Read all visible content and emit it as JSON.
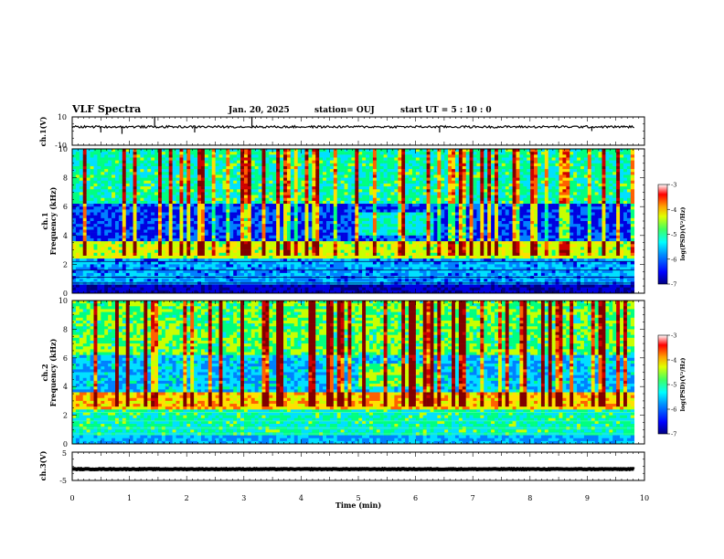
{
  "header": {
    "title": "VLF Spectra",
    "date": "Jan. 20, 2025",
    "station": "station= OUJ",
    "start": "start  UT =   5 : 10 : 0"
  },
  "colors": {
    "colormap": [
      "#000080",
      "#0000e0",
      "#0080ff",
      "#00e0ff",
      "#00ff80",
      "#c8ff00",
      "#ffe000",
      "#ff6000",
      "#d00000",
      "#800000"
    ],
    "axes": "#000000",
    "background": "#ffffff"
  },
  "chart_data": [
    {
      "type": "line",
      "panel": "ch1-waveform",
      "ylabel": "ch.1(V)",
      "ylim": [
        -10,
        10
      ],
      "ytick_labels": [
        "10",
        "-10"
      ],
      "baseline": 3,
      "spikes": [
        {
          "x": 0.5,
          "y": -1
        },
        {
          "x": 0.87,
          "y": -2
        },
        {
          "x": 1.44,
          "y": 10
        },
        {
          "x": 2.14,
          "y": -1
        },
        {
          "x": 3.14,
          "y": 10
        },
        {
          "x": 6.42,
          "y": -1
        },
        {
          "x": 9.08,
          "y": 0
        }
      ]
    },
    {
      "type": "heatmap",
      "panel": "ch1-spectrogram",
      "ylabel": "ch.1",
      "ylabel2": "Frequency (kHz)",
      "ylim": [
        0,
        10
      ],
      "ytick_labels": [
        "0",
        "2",
        "4",
        "6",
        "8",
        "10"
      ],
      "colorbar": {
        "label": "log(PSD)(V²/Hz)",
        "range": [
          -7,
          -3
        ],
        "tick_labels": [
          "-3",
          "-4",
          "-5",
          "-6",
          "-7"
        ]
      }
    },
    {
      "type": "heatmap",
      "panel": "ch2-spectrogram",
      "ylabel": "ch.2",
      "ylabel2": "Frequency (kHz)",
      "ylim": [
        0,
        10
      ],
      "ytick_labels": [
        "0",
        "2",
        "4",
        "6",
        "8",
        "10"
      ],
      "colorbar": {
        "label": "log(PSD)(V²/Hz)",
        "range": [
          -7,
          -3
        ],
        "tick_labels": [
          "-3",
          "-4",
          "-5",
          "-6",
          "-7"
        ]
      }
    },
    {
      "type": "line",
      "panel": "ch3-waveform",
      "ylabel": "ch.3(V)",
      "ylim": [
        -5,
        5
      ],
      "ytick_labels": [
        "5",
        "-5"
      ],
      "baseline": -1
    }
  ],
  "xaxis": {
    "xlabel": "Time (min)",
    "xlim": [
      0,
      10
    ],
    "tick_labels": [
      "0",
      "1",
      "2",
      "3",
      "4",
      "5",
      "6",
      "7",
      "8",
      "9",
      "10"
    ],
    "data_end_min": 9.82
  }
}
